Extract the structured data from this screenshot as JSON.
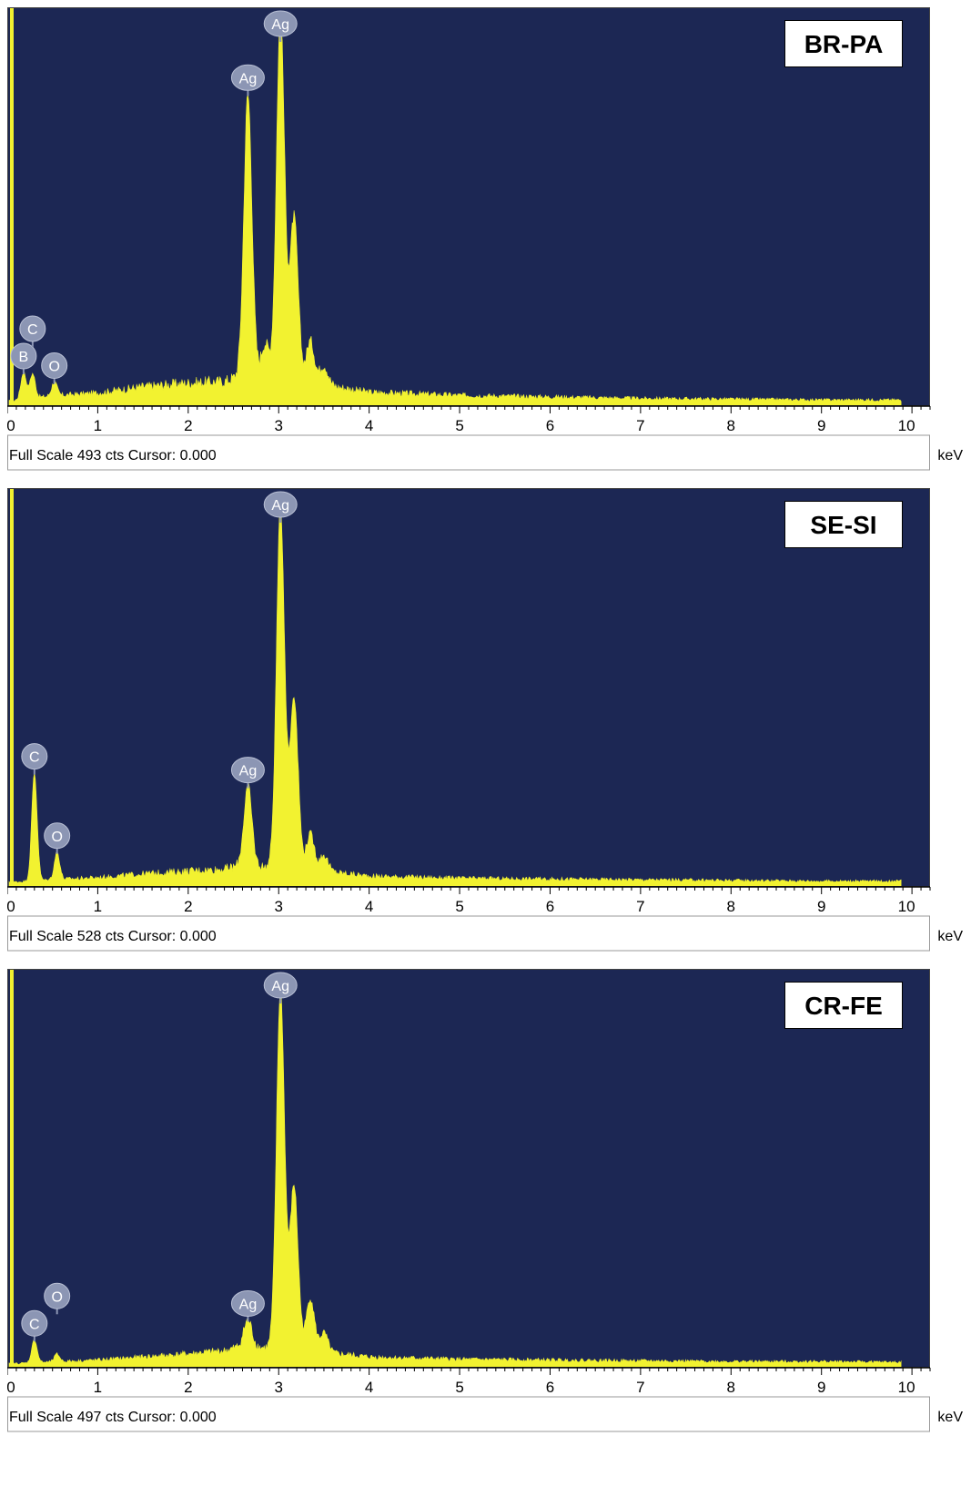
{
  "colors": {
    "background": "#1c2754",
    "spectrum": "#f2f230",
    "peak_label_fill": "#8c96b4",
    "peak_label_text": "#ffffff",
    "frame": "#000000"
  },
  "chart_data": [
    {
      "type": "area",
      "sample_label": "BR-PA",
      "footer_left": "Full Scale 493 cts Cursor: 0.000",
      "xunit": "keV",
      "xlim": [
        0,
        10.2
      ],
      "ylim": [
        0,
        493
      ],
      "x_ticks": [
        "0",
        "1",
        "2",
        "3",
        "4",
        "5",
        "6",
        "7",
        "8",
        "9",
        "10"
      ],
      "baseline": [
        [
          0.0,
          6
        ],
        [
          0.4,
          12
        ],
        [
          0.6,
          14
        ],
        [
          1.0,
          17
        ],
        [
          1.5,
          25
        ],
        [
          2.0,
          30
        ],
        [
          2.4,
          32
        ],
        [
          2.6,
          40
        ],
        [
          3.5,
          28
        ],
        [
          4.0,
          18
        ],
        [
          5.0,
          14
        ],
        [
          6.0,
          12
        ],
        [
          7.0,
          10
        ],
        [
          8.0,
          9
        ],
        [
          9.0,
          8
        ],
        [
          9.9,
          8
        ]
      ],
      "peaks": [
        {
          "element": "B",
          "energy": 0.18,
          "counts": 35,
          "label": true
        },
        {
          "element": "C",
          "energy": 0.28,
          "counts": 32,
          "label": true
        },
        {
          "element": "O",
          "energy": 0.52,
          "counts": 18,
          "label": true
        },
        {
          "element": "Ag",
          "energy": 2.66,
          "counts": 365,
          "label": true
        },
        {
          "element": "Ag",
          "energy": 3.02,
          "counts": 472,
          "label": true
        },
        {
          "element": "Ag",
          "energy": 3.17,
          "counts": 212
        },
        {
          "element": "Ag",
          "energy": 3.35,
          "counts": 55
        },
        {
          "element": "Ag",
          "energy": 2.85,
          "counts": 45
        },
        {
          "element": "Ag",
          "energy": 3.5,
          "counts": 25
        }
      ]
    },
    {
      "type": "area",
      "sample_label": "SE-SI",
      "footer_left": "Full Scale 528 cts Cursor: 0.000",
      "xunit": "keV",
      "xlim": [
        0,
        10.2
      ],
      "ylim": [
        0,
        528
      ],
      "x_ticks": [
        "0",
        "1",
        "2",
        "3",
        "4",
        "5",
        "6",
        "7",
        "8",
        "9",
        "10"
      ],
      "baseline": [
        [
          0.0,
          6
        ],
        [
          0.5,
          10
        ],
        [
          1.0,
          13
        ],
        [
          1.5,
          18
        ],
        [
          2.0,
          22
        ],
        [
          2.4,
          25
        ],
        [
          2.6,
          30
        ],
        [
          3.5,
          22
        ],
        [
          4.0,
          15
        ],
        [
          5.0,
          12
        ],
        [
          6.0,
          11
        ],
        [
          7.0,
          10
        ],
        [
          8.0,
          9
        ],
        [
          9.0,
          8
        ],
        [
          9.9,
          8
        ]
      ],
      "peaks": [
        {
          "element": "C",
          "energy": 0.3,
          "counts": 150,
          "label": true
        },
        {
          "element": "O",
          "energy": 0.55,
          "counts": 38,
          "label": true
        },
        {
          "element": "Ag",
          "energy": 2.66,
          "counts": 110,
          "label": true
        },
        {
          "element": "Ag",
          "energy": 3.02,
          "counts": 500,
          "label": true
        },
        {
          "element": "Ag",
          "energy": 3.17,
          "counts": 240
        },
        {
          "element": "Ag",
          "energy": 3.35,
          "counts": 50
        },
        {
          "element": "Ag",
          "energy": 3.5,
          "counts": 22
        }
      ]
    },
    {
      "type": "area",
      "sample_label": "CR-FE",
      "footer_left": "Full Scale 497 cts Cursor: 0.000",
      "xunit": "keV",
      "xlim": [
        0,
        10.2
      ],
      "ylim": [
        0,
        497
      ],
      "x_ticks": [
        "0",
        "1",
        "2",
        "3",
        "4",
        "5",
        "6",
        "7",
        "8",
        "9",
        "10"
      ],
      "baseline": [
        [
          0.0,
          5
        ],
        [
          0.6,
          8
        ],
        [
          1.0,
          10
        ],
        [
          1.5,
          14
        ],
        [
          2.0,
          18
        ],
        [
          2.4,
          22
        ],
        [
          2.6,
          28
        ],
        [
          3.5,
          20
        ],
        [
          4.0,
          14
        ],
        [
          5.0,
          11
        ],
        [
          6.0,
          10
        ],
        [
          7.0,
          9
        ],
        [
          8.0,
          8
        ],
        [
          9.0,
          8
        ],
        [
          9.9,
          7
        ]
      ],
      "peaks": [
        {
          "element": "C",
          "energy": 0.3,
          "counts": 30,
          "label": true
        },
        {
          "element": "O",
          "energy": 0.55,
          "counts": 10,
          "label": true
        },
        {
          "element": "Ag",
          "energy": 2.66,
          "counts": 35,
          "label": true
        },
        {
          "element": "Ag",
          "energy": 3.02,
          "counts": 470,
          "label": true
        },
        {
          "element": "Ag",
          "energy": 3.17,
          "counts": 215
        },
        {
          "element": "Ag",
          "energy": 3.35,
          "counts": 70
        },
        {
          "element": "Ag",
          "energy": 3.5,
          "counts": 25
        }
      ]
    }
  ]
}
